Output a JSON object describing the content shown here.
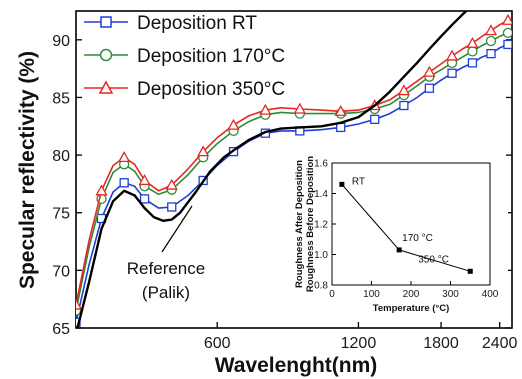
{
  "chart_data": [
    {
      "type": "line",
      "xlabel": "Wavelenght(nm)",
      "ylabel": "Specular reflectivity (%)",
      "x_scale": "log",
      "xlim": [
        300,
        2550
      ],
      "ylim": [
        65,
        92.5
      ],
      "x_ticks": [
        600,
        1200,
        1800,
        2400
      ],
      "y_ticks": [
        65,
        70,
        75,
        80,
        85,
        90
      ],
      "legend_position": "top-left",
      "series": [
        {
          "name": "Deposition RT",
          "color": "#1f3fd6",
          "marker": "square",
          "x": [
            300,
            320,
            340,
            360,
            380,
            400,
            420,
            450,
            480,
            520,
            560,
            600,
            650,
            700,
            760,
            820,
            900,
            1000,
            1100,
            1200,
            1300,
            1400,
            1500,
            1600,
            1700,
            1800,
            1900,
            2000,
            2100,
            2200,
            2300,
            2400,
            2500
          ],
          "y": [
            65.5,
            70.5,
            74.5,
            76.8,
            77.6,
            77.3,
            76.2,
            75.4,
            75.5,
            76.5,
            77.8,
            79.1,
            80.3,
            81.2,
            81.9,
            82.1,
            82.1,
            82.2,
            82.4,
            82.7,
            83.1,
            83.6,
            84.3,
            85.0,
            85.8,
            86.5,
            87.1,
            87.6,
            88.0,
            88.5,
            88.8,
            89.3,
            89.6
          ]
        },
        {
          "name": "Deposition 170°C",
          "color": "#2e8b3a",
          "marker": "circle",
          "x": [
            300,
            320,
            340,
            360,
            380,
            400,
            420,
            450,
            480,
            520,
            560,
            600,
            650,
            700,
            760,
            820,
            900,
            1000,
            1100,
            1200,
            1300,
            1400,
            1500,
            1600,
            1700,
            1800,
            1900,
            2000,
            2100,
            2200,
            2300,
            2400,
            2500
          ],
          "y": [
            66.5,
            72.0,
            76.2,
            78.5,
            79.2,
            78.6,
            77.3,
            76.6,
            77.0,
            78.3,
            79.8,
            81.0,
            82.1,
            82.9,
            83.5,
            83.7,
            83.6,
            83.6,
            83.6,
            83.7,
            84.0,
            84.4,
            85.2,
            86.0,
            86.8,
            87.4,
            88.0,
            88.5,
            89.0,
            89.5,
            89.9,
            90.3,
            90.6
          ]
        },
        {
          "name": "Deposition 350°C",
          "color": "#e8261f",
          "marker": "triangle",
          "x": [
            300,
            320,
            340,
            360,
            380,
            400,
            420,
            450,
            480,
            520,
            560,
            600,
            650,
            700,
            760,
            820,
            900,
            1000,
            1100,
            1200,
            1300,
            1400,
            1500,
            1600,
            1700,
            1800,
            1900,
            2000,
            2100,
            2200,
            2300,
            2400,
            2500
          ],
          "y": [
            67.0,
            72.6,
            76.9,
            79.1,
            79.8,
            79.2,
            77.8,
            76.9,
            77.4,
            78.8,
            80.3,
            81.5,
            82.6,
            83.4,
            83.9,
            84.1,
            84.0,
            83.9,
            83.8,
            83.9,
            84.3,
            84.8,
            85.6,
            86.4,
            87.2,
            87.9,
            88.6,
            89.2,
            89.7,
            90.3,
            90.8,
            91.3,
            91.7
          ]
        },
        {
          "name": "Reference (Palik)",
          "color": "#000000",
          "marker": "none",
          "x": [
            300,
            320,
            340,
            360,
            380,
            400,
            420,
            440,
            460,
            480,
            500,
            540,
            580,
            620,
            660,
            700,
            760,
            820,
            900,
            1000,
            1100,
            1200,
            1300,
            1400,
            1500,
            1600,
            1700,
            1800,
            1900,
            2000,
            2050
          ],
          "y": [
            64.5,
            69.0,
            73.6,
            76.0,
            76.9,
            76.5,
            75.4,
            74.6,
            74.3,
            74.4,
            75.0,
            76.8,
            78.6,
            79.8,
            80.6,
            81.3,
            82.0,
            82.3,
            82.4,
            82.5,
            82.8,
            83.3,
            84.3,
            85.5,
            86.8,
            88.0,
            89.2,
            90.3,
            91.3,
            92.2,
            92.6
          ]
        }
      ],
      "annotations": [
        "Reference",
        "(Palik)"
      ]
    },
    {
      "type": "line",
      "xlabel": "Temperature (°C)",
      "ylabel": "Roughness After Deposition / Roughness Before Deposition",
      "xlim": [
        0,
        400
      ],
      "ylim": [
        0.8,
        1.6
      ],
      "x_ticks": [
        0,
        100,
        200,
        300,
        400
      ],
      "y_ticks": [
        0.8,
        1.0,
        1.2,
        1.4,
        1.6
      ],
      "marker": "square",
      "points": [
        {
          "x": 25,
          "y": 1.46,
          "label": "RT"
        },
        {
          "x": 170,
          "y": 1.03,
          "label": "170 °C"
        },
        {
          "x": 350,
          "y": 0.89,
          "label": "350 °C"
        }
      ]
    }
  ]
}
